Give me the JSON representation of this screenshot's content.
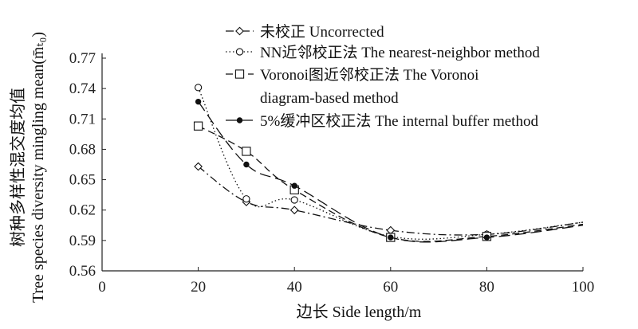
{
  "chart_data": {
    "type": "line",
    "xlabel": "边长 Side length/m",
    "ylabel": "树种多样性混交度均值",
    "ylabel_en": "Tree species diversity mingling mean(m̄ₜ₀)",
    "xlim": [
      0,
      100
    ],
    "ylim": [
      0.56,
      0.77
    ],
    "xticks": [
      0,
      20,
      40,
      60,
      80,
      100
    ],
    "yticks": [
      0.56,
      0.59,
      0.62,
      0.65,
      0.68,
      0.71,
      0.74,
      0.77
    ],
    "grid": false,
    "legend_position": "top-right",
    "x": [
      20,
      30,
      40,
      60,
      80
    ],
    "series": [
      {
        "name": "未校正 Uncorrected",
        "values": [
          0.663,
          0.628,
          0.62,
          0.6,
          0.596
        ],
        "marker": "diamond",
        "dash": "dash-dot"
      },
      {
        "name": "NN近邻校正法 The nearest-neighbor method",
        "values": [
          0.741,
          0.631,
          0.63,
          0.594,
          0.596
        ],
        "marker": "circle",
        "dash": "dotted"
      },
      {
        "name": "Voronoi图近邻校正法 The Voronoi diagram-based method",
        "legend_lines": [
          "Voronoi图近邻校正法 The Voronoi",
          "diagram-based method"
        ],
        "values": [
          0.703,
          0.678,
          0.64,
          0.593,
          0.594
        ],
        "marker": "square",
        "dash": "dashed"
      },
      {
        "name": "5%缓冲区校正法 The internal buffer method",
        "values": [
          0.727,
          0.665,
          0.644,
          0.593,
          0.593
        ],
        "marker": "dot",
        "dash": "long-dash"
      }
    ]
  }
}
